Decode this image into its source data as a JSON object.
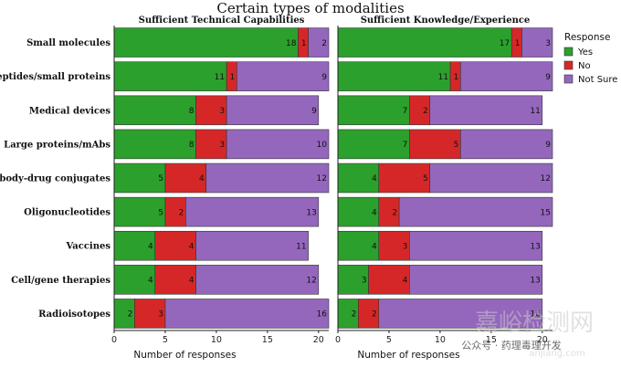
{
  "chart_data": {
    "type": "bar",
    "orientation": "horizontal",
    "stacked": true,
    "title": "Certain types of modalities",
    "xlabel": "Number of responses",
    "xlim": [
      0,
      21
    ],
    "xticks": [
      0,
      5,
      10,
      15,
      20
    ],
    "categories": [
      "Small molecules",
      "Peptides/small proteins",
      "Medical devices",
      "Large proteins/mAbs",
      "Antibody-drug conjugates",
      "Oligonucleotides",
      "Vaccines",
      "Cell/gene therapies",
      "Radioisotopes"
    ],
    "legend": {
      "title": "Response",
      "position": "right",
      "entries": [
        {
          "name": "Yes",
          "color": "#2ca02c"
        },
        {
          "name": "No",
          "color": "#d62728"
        },
        {
          "name": "Not Sure",
          "color": "#9467bd"
        }
      ]
    },
    "panels": [
      {
        "title": "Sufficient Technical Capabilities",
        "series": [
          {
            "name": "Yes",
            "values": [
              18,
              11,
              8,
              8,
              5,
              5,
              4,
              4,
              2
            ]
          },
          {
            "name": "No",
            "values": [
              1,
              1,
              3,
              3,
              4,
              2,
              4,
              4,
              3
            ]
          },
          {
            "name": "Not Sure",
            "values": [
              2,
              9,
              9,
              10,
              12,
              13,
              11,
              12,
              16
            ]
          }
        ]
      },
      {
        "title": "Sufficient Knowledge/Experience",
        "series": [
          {
            "name": "Yes",
            "values": [
              17,
              11,
              7,
              7,
              4,
              4,
              4,
              3,
              2
            ]
          },
          {
            "name": "No",
            "values": [
              1,
              1,
              2,
              5,
              5,
              2,
              3,
              4,
              2
            ]
          },
          {
            "name": "Not Sure",
            "values": [
              3,
              9,
              11,
              9,
              12,
              15,
              13,
              13,
              16
            ]
          }
        ]
      }
    ]
  },
  "watermark": {
    "big_text": "嘉峪检测网",
    "small_text": "公众号 · 药理毒理开发",
    "url_text": "anjiang.com"
  }
}
